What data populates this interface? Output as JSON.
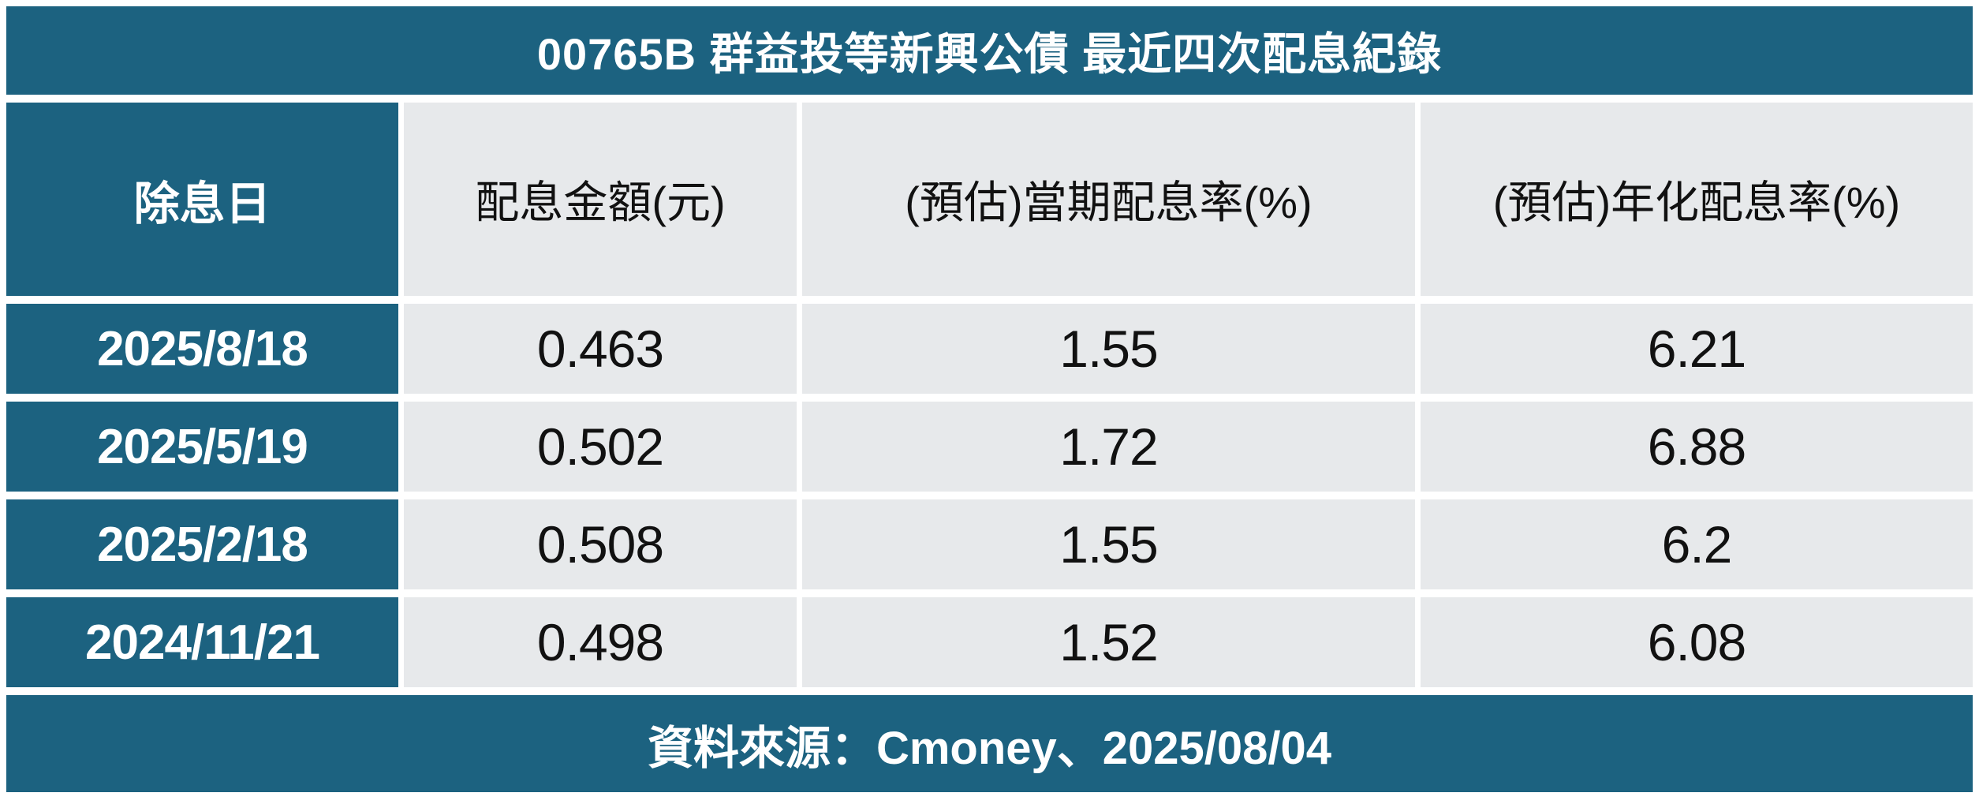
{
  "title": "00765B 群益投等新興公債 最近四次配息紀錄",
  "footer": "資料來源：Cmoney、2025/08/04",
  "colors": {
    "accent_teal": "#1c6280",
    "cell_gray": "#e7e9eb",
    "header_text": "#111111",
    "page_background": "#ffffff"
  },
  "table": {
    "columns": [
      "除息日",
      "配息金額(元)",
      "(預估)當期配息率(%)",
      "(預估)年化配息率(%)"
    ],
    "rows": [
      [
        "2025/8/18",
        "0.463",
        "1.55",
        "6.21"
      ],
      [
        "2025/5/19",
        "0.502",
        "1.72",
        "6.88"
      ],
      [
        "2025/2/18",
        "0.508",
        "1.55",
        "6.2"
      ],
      [
        "2024/11/21",
        "0.498",
        "1.52",
        "6.08"
      ]
    ]
  },
  "chart_data": {
    "type": "table",
    "title": "00765B 群益投等新興公債 最近四次配息紀錄",
    "columns": [
      "除息日",
      "配息金額(元)",
      "(預估)當期配息率(%)",
      "(預估)年化配息率(%)"
    ],
    "rows": [
      {
        "ex_dividend_date": "2025/8/18",
        "dividend_amount_ntd": 0.463,
        "est_period_yield_pct": 1.55,
        "est_annualized_yield_pct": 6.21
      },
      {
        "ex_dividend_date": "2025/5/19",
        "dividend_amount_ntd": 0.502,
        "est_period_yield_pct": 1.72,
        "est_annualized_yield_pct": 6.88
      },
      {
        "ex_dividend_date": "2025/2/18",
        "dividend_amount_ntd": 0.508,
        "est_period_yield_pct": 1.55,
        "est_annualized_yield_pct": 6.2
      },
      {
        "ex_dividend_date": "2024/11/21",
        "dividend_amount_ntd": 0.498,
        "est_period_yield_pct": 1.52,
        "est_annualized_yield_pct": 6.08
      }
    ],
    "source_note": "資料來源：Cmoney、2025/08/04"
  }
}
